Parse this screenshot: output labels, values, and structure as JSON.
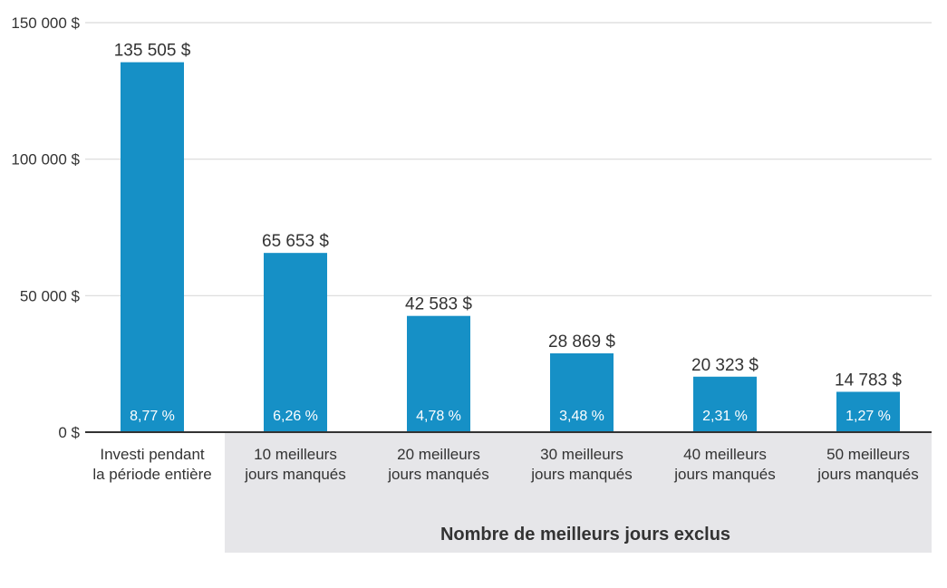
{
  "chart_data": {
    "type": "bar",
    "categories": [
      [
        "Investi pendant",
        "la période entière"
      ],
      [
        "10 meilleurs",
        "jours manqués"
      ],
      [
        "20 meilleurs",
        "jours manqués"
      ],
      [
        "30 meilleurs",
        "jours manqués"
      ],
      [
        "40 meilleurs",
        "jours manqués"
      ],
      [
        "50 meilleurs",
        "jours manqués"
      ]
    ],
    "values": [
      135505,
      65653,
      42583,
      28869,
      20323,
      14783
    ],
    "value_labels": [
      "135 505 $",
      "65 653 $",
      "42 583 $",
      "28 869 $",
      "20 323 $",
      "14 783 $"
    ],
    "rate_labels": [
      "8,77 %",
      "6,26 %",
      "4,78 %",
      "3,48 %",
      "2,31 %",
      "1,27 %"
    ],
    "y_ticks": [
      0,
      50000,
      100000,
      150000
    ],
    "y_tick_labels": [
      "0 $",
      "50 000 $",
      "100 000 $",
      "150 000 $"
    ],
    "ylim": [
      0,
      150000
    ],
    "grid": true,
    "group_title": "Nombre de meilleurs jours exclus",
    "colors": {
      "bar": "#1690C6",
      "grid": "#D9D9D9",
      "axis": "#333333",
      "group_background": "#E6E6E9"
    }
  }
}
